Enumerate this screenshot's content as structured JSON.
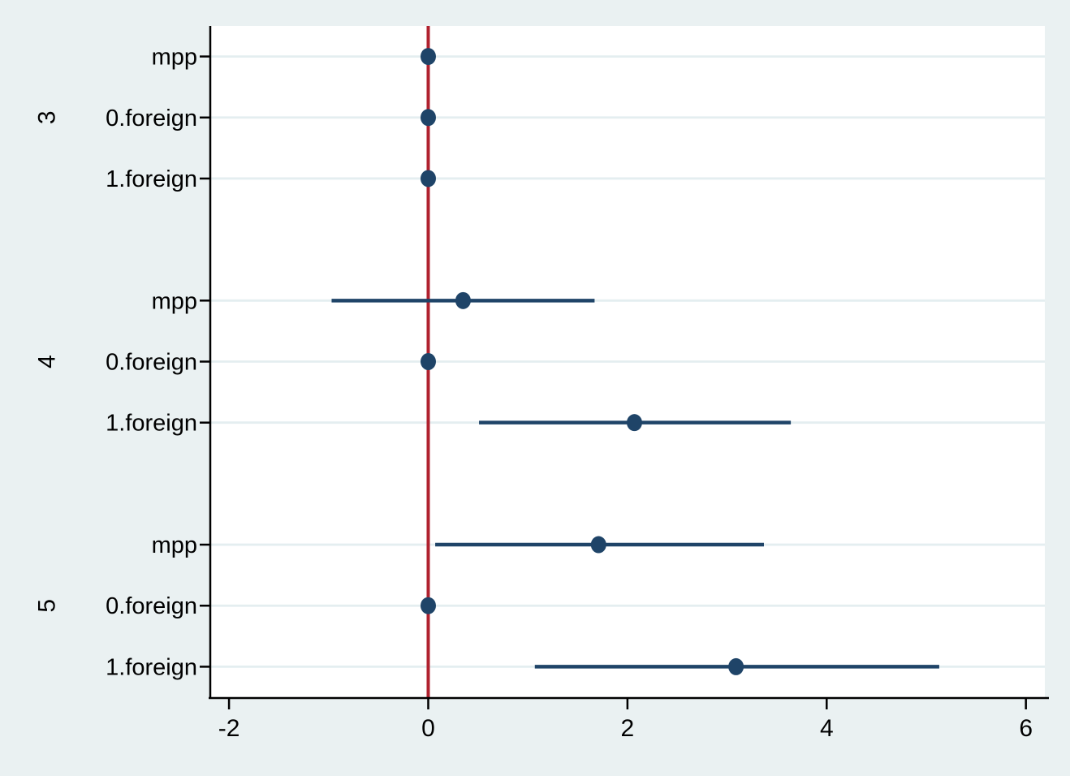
{
  "chart_data": {
    "type": "scatter",
    "subtype": "coefficient-plot-with-ci",
    "title": "",
    "xlabel": "",
    "ylabel": "",
    "xlim": [
      -2.18,
      6.19
    ],
    "x_ticks": [
      {
        "value": -2,
        "label": "-2"
      },
      {
        "value": 0,
        "label": "0"
      },
      {
        "value": 2,
        "label": "2"
      },
      {
        "value": 4,
        "label": "4"
      },
      {
        "value": 6,
        "label": "6"
      }
    ],
    "grid": "horizontal",
    "legend": "none",
    "zero_line": {
      "x": 0
    },
    "groups": [
      {
        "label": "3",
        "rows": [
          {
            "label": "mpp",
            "estimate": 0.0,
            "ci_low": 0.0,
            "ci_high": 0.0
          },
          {
            "label": "0.foreign",
            "estimate": 0.0,
            "ci_low": 0.0,
            "ci_high": 0.0
          },
          {
            "label": "1.foreign",
            "estimate": 0.0,
            "ci_low": 0.0,
            "ci_high": 0.0
          }
        ]
      },
      {
        "label": "4",
        "rows": [
          {
            "label": "mpp",
            "estimate": 0.35,
            "ci_low": -0.97,
            "ci_high": 1.67
          },
          {
            "label": "0.foreign",
            "estimate": 0.0,
            "ci_low": 0.0,
            "ci_high": 0.0
          },
          {
            "label": "1.foreign",
            "estimate": 2.07,
            "ci_low": 0.51,
            "ci_high": 3.64
          }
        ]
      },
      {
        "label": "5",
        "rows": [
          {
            "label": "mpp",
            "estimate": 1.71,
            "ci_low": 0.07,
            "ci_high": 3.37
          },
          {
            "label": "0.foreign",
            "estimate": 0.0,
            "ci_low": 0.0,
            "ci_high": 0.0
          },
          {
            "label": "1.foreign",
            "estimate": 3.09,
            "ci_low": 1.07,
            "ci_high": 5.13
          }
        ]
      }
    ],
    "colors": {
      "background": "#eaf1f2",
      "plot_background": "#ffffff",
      "gridline": "#e4eef0",
      "axis": "#000000",
      "marker": "#1f4468",
      "ci_line": "#1f4468",
      "zero_line": "#b0212e"
    }
  }
}
